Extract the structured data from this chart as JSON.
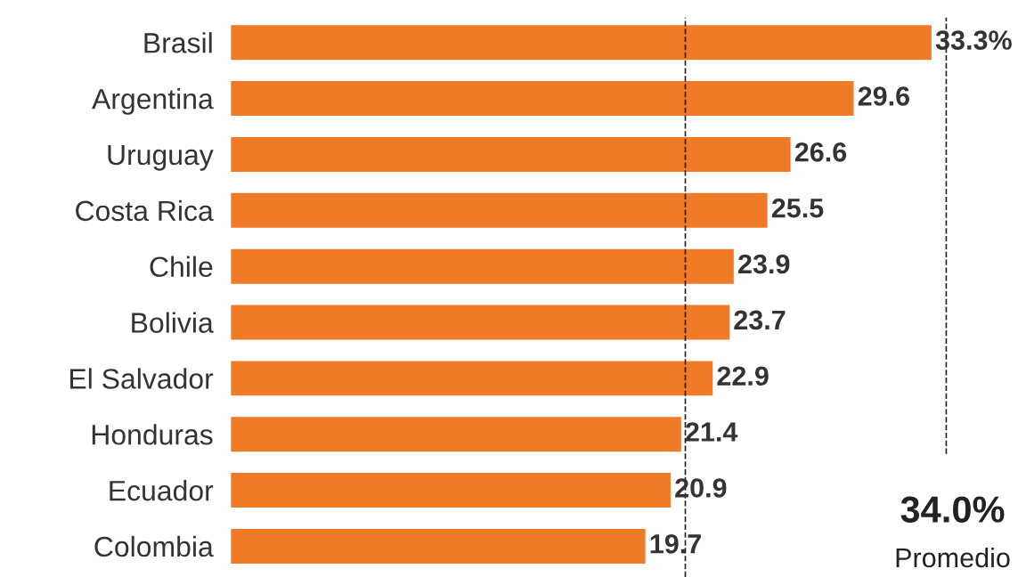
{
  "chart_data": {
    "type": "bar",
    "orientation": "horizontal",
    "categories": [
      "Brasil",
      "Argentina",
      "Uruguay",
      "Costa Rica",
      "Chile",
      "Bolivia",
      "El Salvador",
      "Honduras",
      "Ecuador",
      "Colombia"
    ],
    "values": [
      33.3,
      29.6,
      26.6,
      25.5,
      23.9,
      23.7,
      22.9,
      21.4,
      20.9,
      19.7
    ],
    "value_labels": [
      "33.3%",
      "29.6",
      "26.6",
      "25.5",
      "23.9",
      "23.7",
      "22.9",
      "21.4",
      "20.9",
      "19.7"
    ],
    "color": "#f07a26",
    "ref_lines": [
      {
        "axis": "x",
        "value": 21.6,
        "label": null,
        "line_style": "dashed",
        "color": "#222222"
      },
      {
        "axis": "x",
        "value": 34.0,
        "label": "34.0%",
        "line_style": "dashed",
        "color": "#222222"
      }
    ],
    "annotations": [
      "Promedio"
    ]
  }
}
